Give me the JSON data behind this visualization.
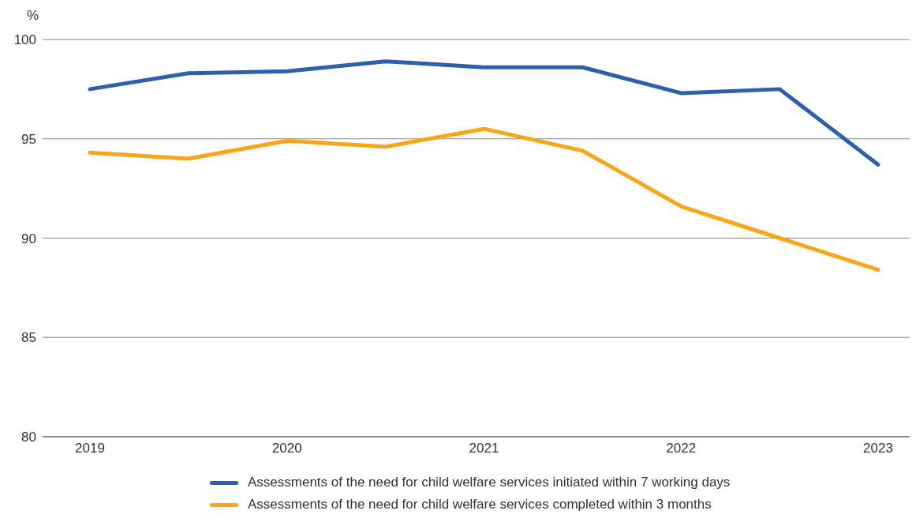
{
  "chart_data": {
    "type": "line",
    "ylabel": "%",
    "categories": [
      "2019",
      null,
      "2020",
      null,
      "2021",
      null,
      "2022",
      null,
      "2023"
    ],
    "series": [
      {
        "name": "Assessments of the need for child welfare services initiated within 7 working days",
        "color": "#2e5fac",
        "values": [
          97.5,
          98.3,
          98.4,
          98.9,
          98.6,
          98.6,
          97.3,
          97.5,
          93.7
        ]
      },
      {
        "name": "Assessments of the need for child welfare services completed within 3 months",
        "color": "#f9a51a",
        "values": [
          94.3,
          94.0,
          94.9,
          94.6,
          95.5,
          94.4,
          91.6,
          90.0,
          88.4
        ]
      }
    ],
    "ylim": [
      80,
      100
    ],
    "yticks": [
      80,
      85,
      90,
      95,
      100
    ],
    "grid": "y",
    "legend": "bottom",
    "marker": "none",
    "line_style": "solid"
  }
}
